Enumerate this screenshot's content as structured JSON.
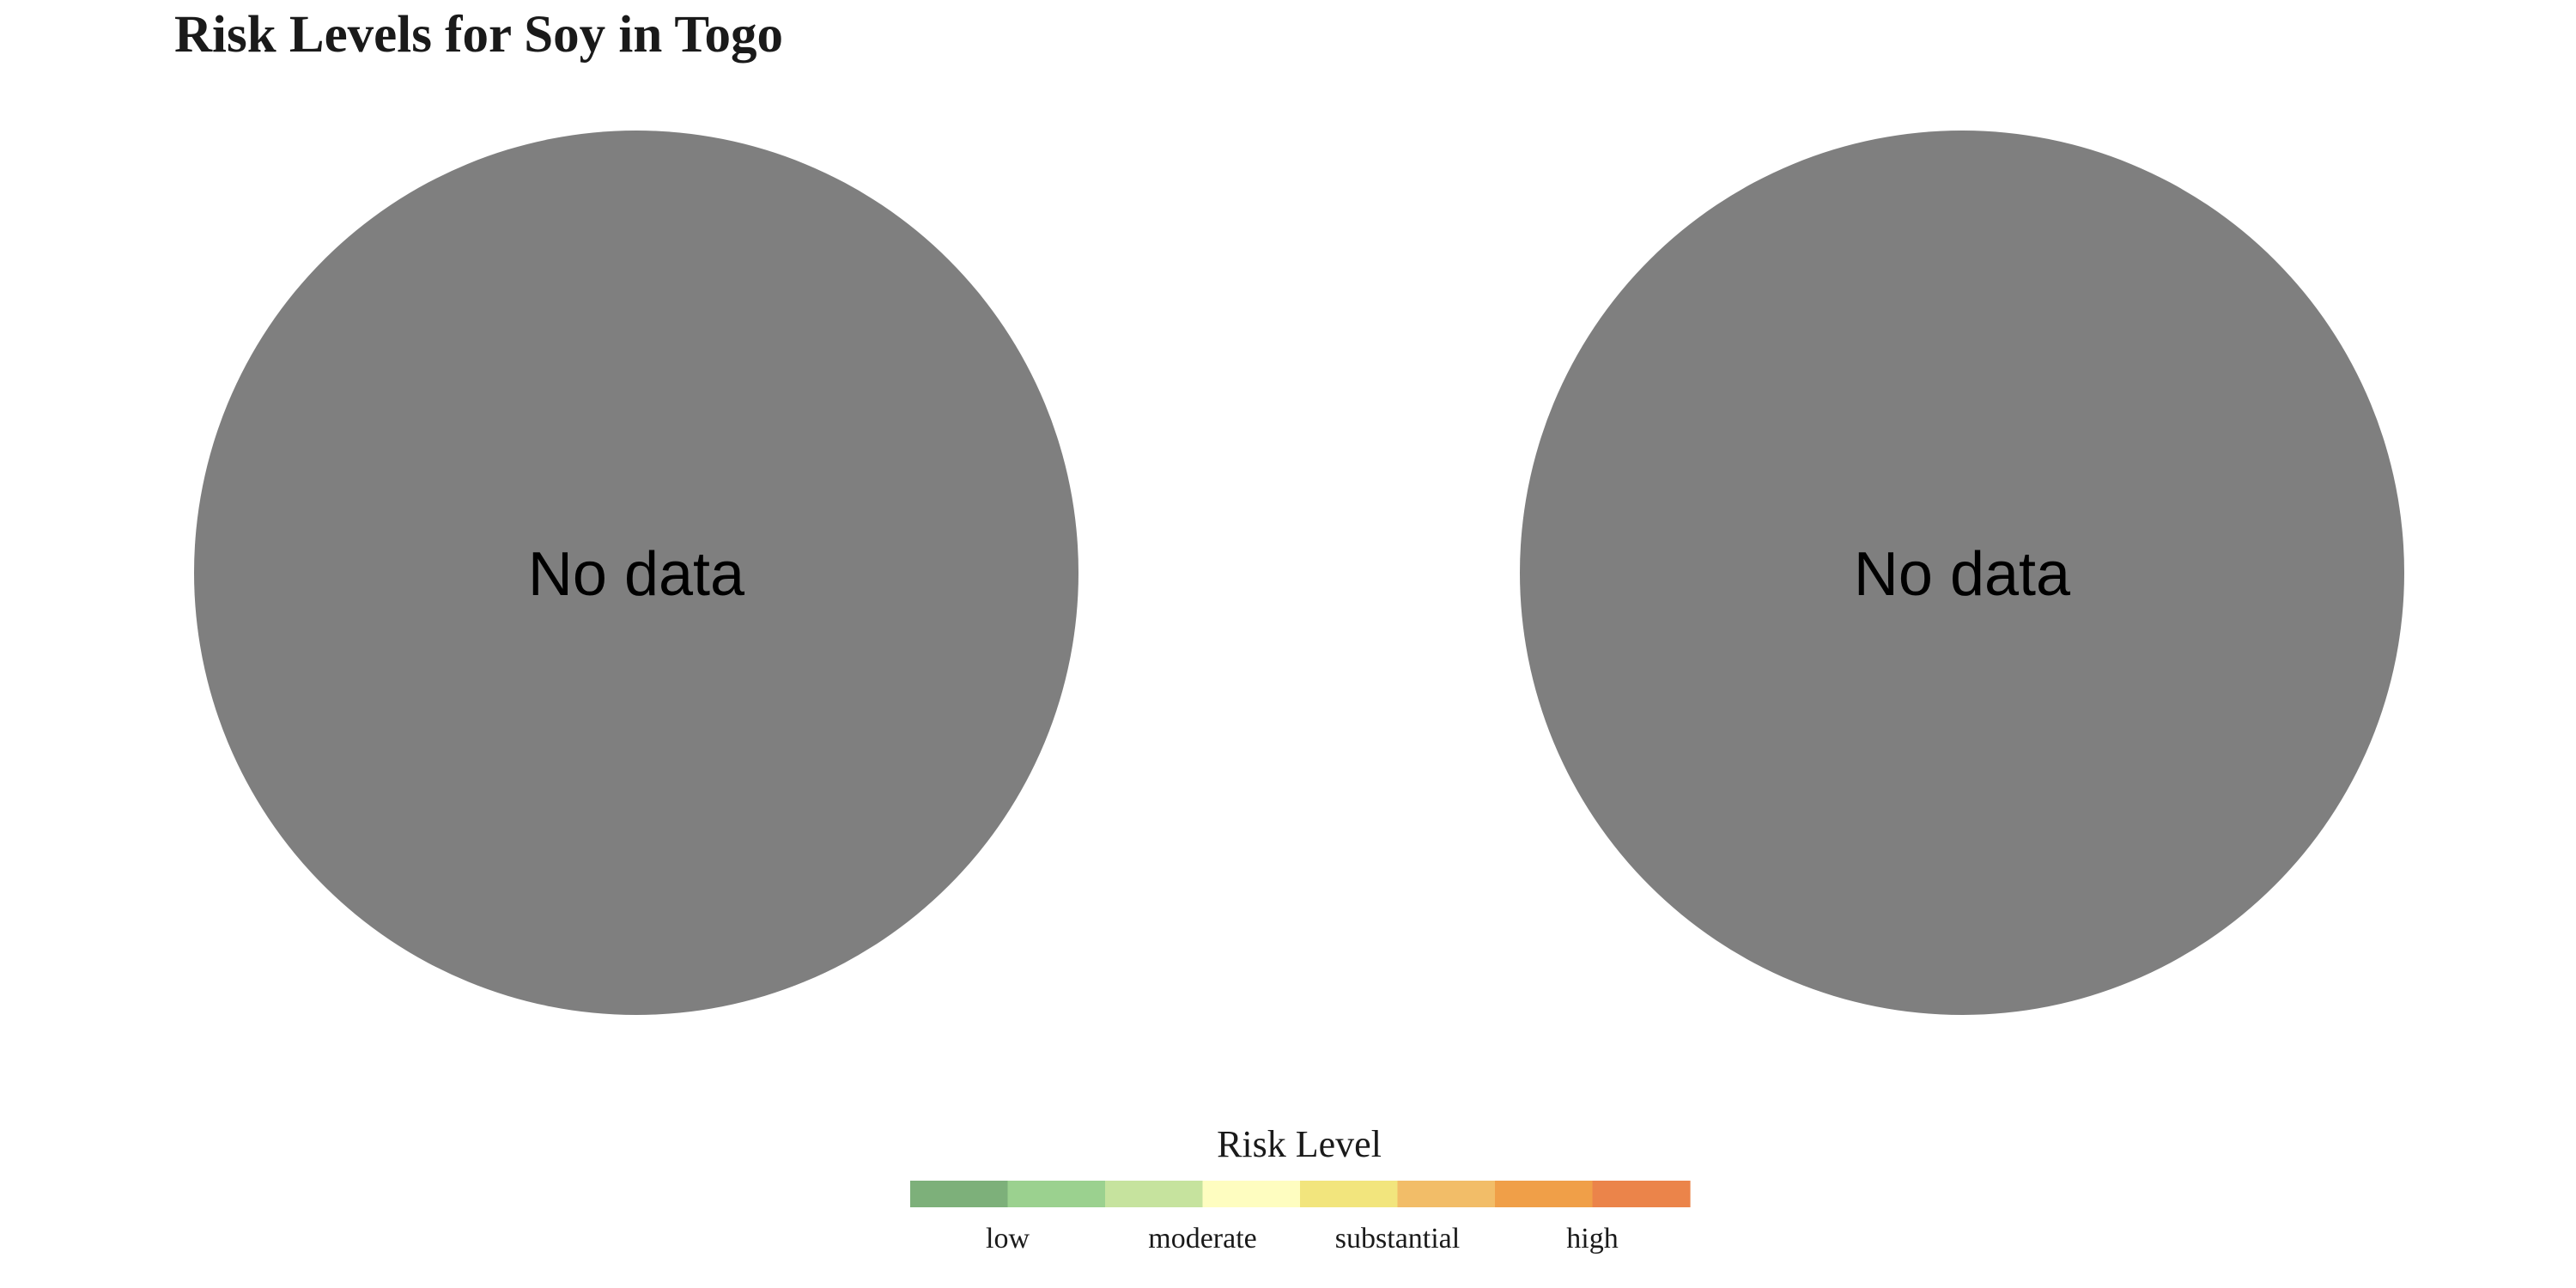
{
  "chart_data": {
    "type": "pie",
    "title": "Risk Levels for Soy in Togo",
    "panels": [
      {
        "label": "No data",
        "fill": "#7f7f7f"
      },
      {
        "label": "No data",
        "fill": "#7f7f7f"
      }
    ],
    "legend": {
      "title": "Risk Level",
      "placement": "bottom",
      "colors": [
        "#7db07a",
        "#9bd18f",
        "#c6e39e",
        "#fefdc0",
        "#f2e57d",
        "#f2bd68",
        "#f09f48",
        "#eb844a"
      ],
      "labels": [
        "low",
        "moderate",
        "substantial",
        "high"
      ]
    }
  }
}
